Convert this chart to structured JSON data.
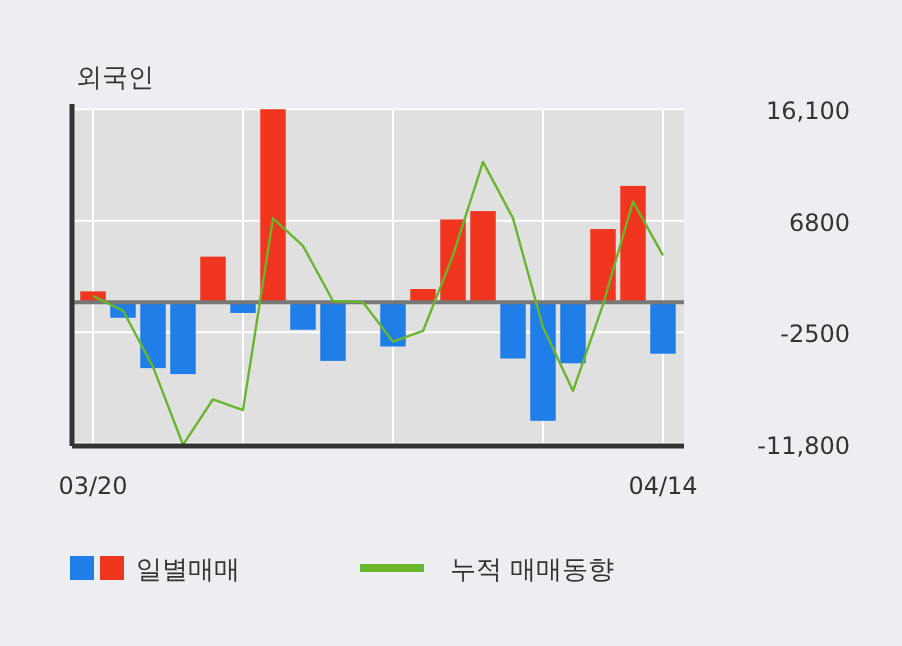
{
  "chart_data": {
    "type": "bar",
    "title": "외국인",
    "categories": [
      "03/20",
      null,
      null,
      null,
      null,
      null,
      null,
      null,
      null,
      null,
      null,
      null,
      null,
      null,
      null,
      null,
      null,
      null,
      null,
      "04/14"
    ],
    "series": [
      {
        "name": "일별매매",
        "values": [
          900,
          -1300,
          -5500,
          -6000,
          3800,
          -900,
          16100,
          -2300,
          -4900,
          0,
          -3700,
          1100,
          6900,
          7600,
          -4700,
          -9900,
          -5100,
          6100,
          9700,
          -4300
        ],
        "colors": [
          "#f0361e",
          "#1f7ee8",
          "#1f7ee8",
          "#1f7ee8",
          "#f0361e",
          "#1f7ee8",
          "#f0361e",
          "#1f7ee8",
          "#1f7ee8",
          "#1f7ee8",
          "#1f7ee8",
          "#f0361e",
          "#f0361e",
          "#f0361e",
          "#1f7ee8",
          "#1f7ee8",
          "#1f7ee8",
          "#f0361e",
          "#f0361e",
          "#1f7ee8"
        ]
      },
      {
        "name": "누적 매매동향",
        "type": "line",
        "color": "#6ab52e",
        "values": [
          500,
          -700,
          -5400,
          -11900,
          -8100,
          -9000,
          7000,
          4700,
          100,
          0,
          -3300,
          -2400,
          3900,
          11700,
          7000,
          -2100,
          -7400,
          -200,
          8400,
          3900
        ]
      }
    ],
    "ylim": [
      -12000,
      16200
    ],
    "yticks": [
      {
        "value": 16100,
        "label": "16,100"
      },
      6800,
      -2500,
      {
        "value": -11800,
        "label": "-11,800"
      }
    ],
    "grid": true,
    "legend": "bottom",
    "marker": "none"
  }
}
